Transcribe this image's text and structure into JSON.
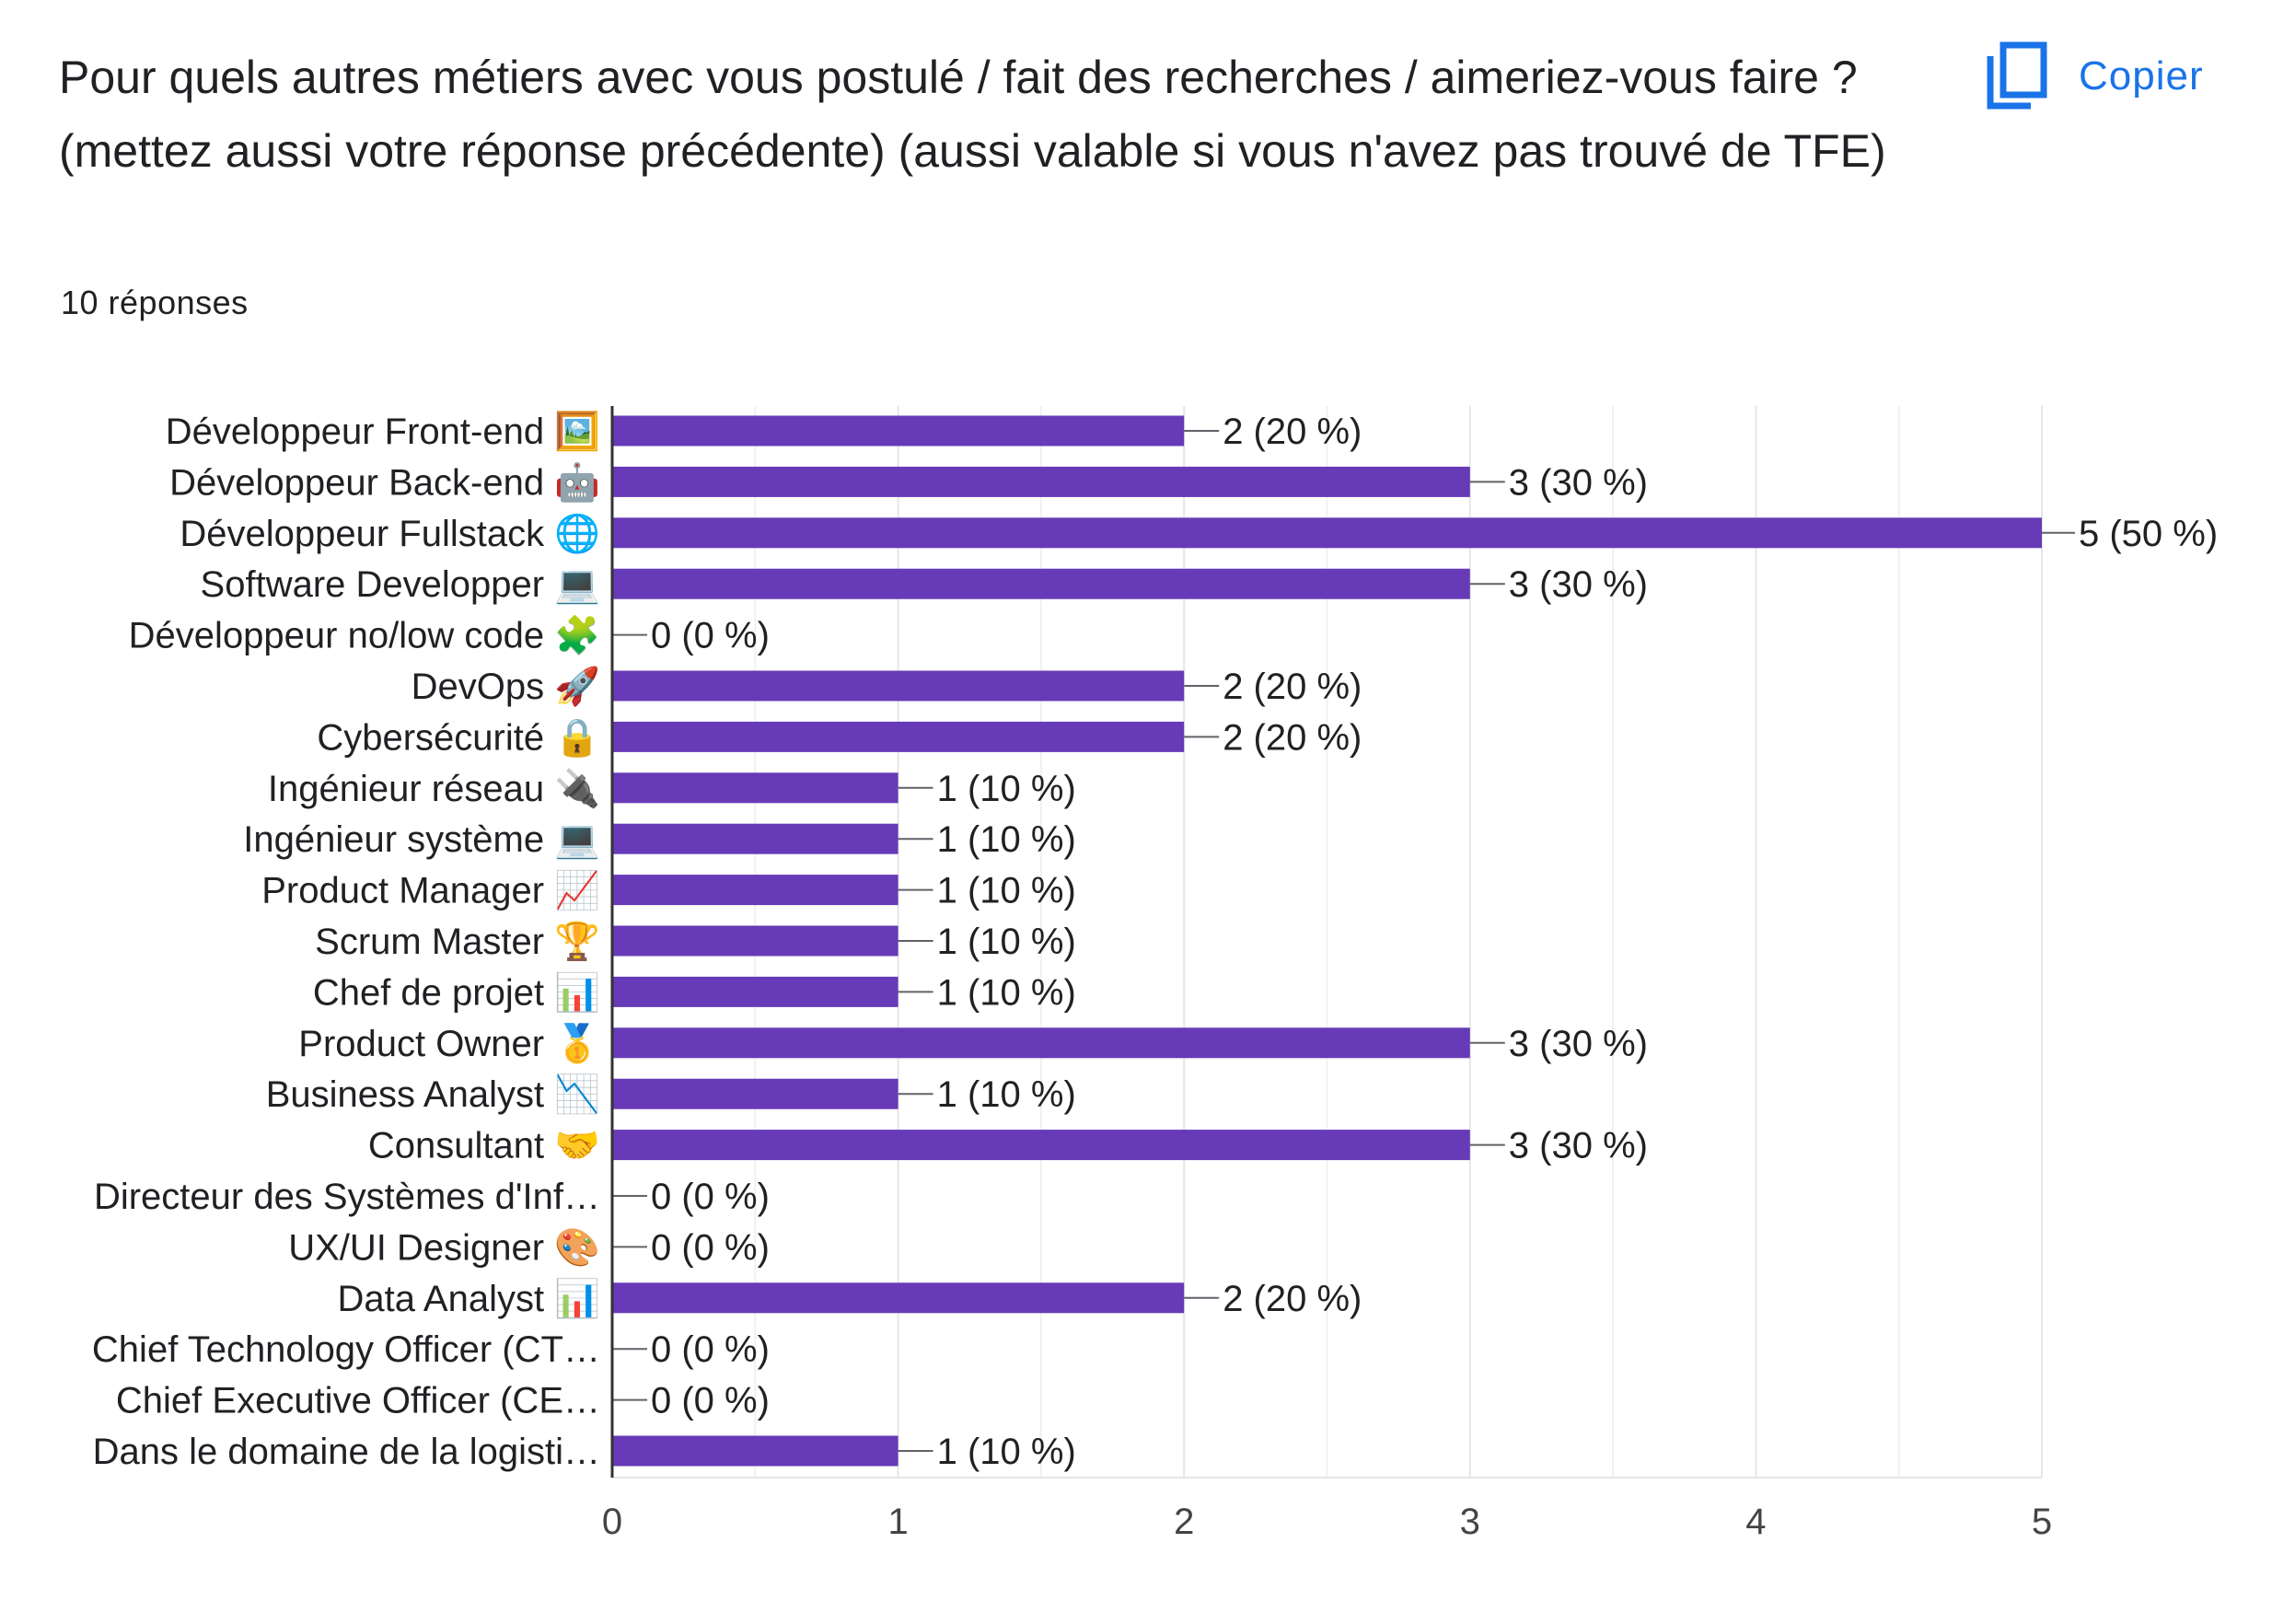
{
  "question": {
    "title": "Pour quels autres métiers avec vous postulé / fait des recherches / aimeriez-vous faire ? (mettez aussi votre réponse précédente) (aussi valable si vous n'avez pas trouvé de TFE)",
    "responses_label": "10 réponses"
  },
  "toolbar": {
    "copy_label": "Copier",
    "copy_icon": "copy-icon"
  },
  "colors": {
    "bar": "#673ab7",
    "grid": "#e6e6e6",
    "accent": "#1a73e8",
    "text": "#202124"
  },
  "chart_data": {
    "type": "bar",
    "orientation": "horizontal",
    "categories": [
      "Développeur Front-end 🖼️",
      "Développeur Back-end 🤖",
      "Développeur Fullstack 🌐",
      "Software Developper 💻",
      "Développeur no/low code 🧩",
      "DevOps 🚀",
      "Cybersécurité 🔒",
      "Ingénieur réseau 🔌",
      "Ingénieur système 💻",
      "Product Manager 📈",
      "Scrum Master 🏆",
      "Chef de projet 📊",
      "Product Owner 🥇",
      "Business Analyst 📉",
      "Consultant 🤝",
      "Directeur des Systèmes d'Inf…",
      "UX/UI Designer 🎨",
      "Data Analyst 📊",
      "Chief Technology Officer (CT…",
      "Chief Executive Officer (CE…",
      "Dans le domaine de la logisti…"
    ],
    "values": [
      2,
      3,
      5,
      3,
      0,
      2,
      2,
      1,
      1,
      1,
      1,
      1,
      3,
      1,
      3,
      0,
      0,
      2,
      0,
      0,
      1
    ],
    "value_labels": [
      "2 (20 %)",
      "3 (30 %)",
      "5 (50 %)",
      "3 (30 %)",
      "0 (0 %)",
      "2 (20 %)",
      "2 (20 %)",
      "1 (10 %)",
      "1 (10 %)",
      "1 (10 %)",
      "1 (10 %)",
      "1 (10 %)",
      "3 (30 %)",
      "1 (10 %)",
      "3 (30 %)",
      "0 (0 %)",
      "0 (0 %)",
      "2 (20 %)",
      "0 (0 %)",
      "0 (0 %)",
      "1 (10 %)"
    ],
    "xlim": [
      0,
      5
    ],
    "xticks": [
      0,
      1,
      2,
      3,
      4,
      5
    ],
    "grid": true,
    "minor_grid": true,
    "legend": "none",
    "title": "",
    "xlabel": "",
    "ylabel": ""
  }
}
